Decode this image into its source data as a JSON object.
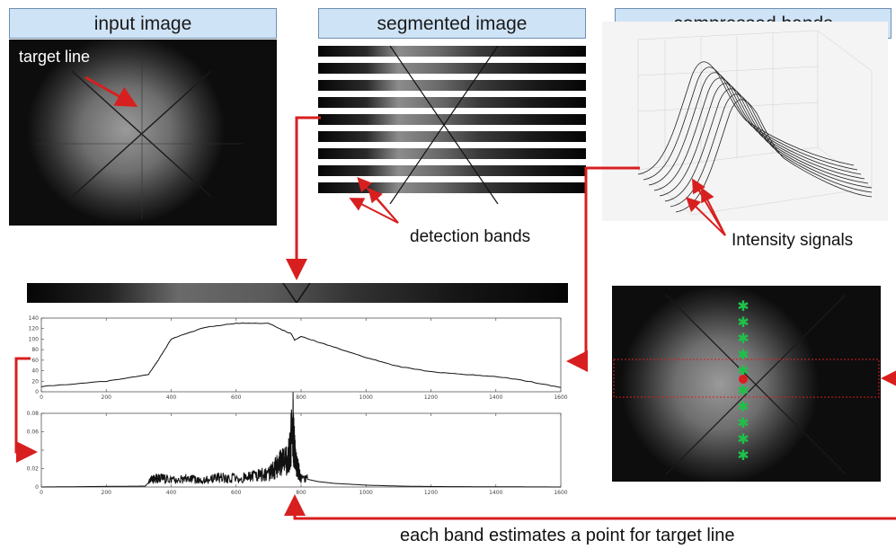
{
  "headers": {
    "input": "input image",
    "segmented": "segmented image",
    "compressed": "compressed bands"
  },
  "labels": {
    "target_line": "target line",
    "detection_bands": "detection bands",
    "intensity_signals": "Intensity signals",
    "each_band": "each band estimates a point for target line"
  },
  "colors": {
    "arrow": "#d81f1f",
    "marker": "#1fc04a",
    "header_bg": "#cfe3f6"
  },
  "chart_data": [
    {
      "type": "line",
      "title": "",
      "xlabel": "",
      "ylabel": "",
      "x_ticks": [
        0,
        200,
        400,
        600,
        800,
        1000,
        1200,
        1400,
        1600
      ],
      "y_ticks": [
        0,
        20,
        40,
        60,
        80,
        100,
        120,
        140
      ],
      "xlim": [
        0,
        1600
      ],
      "ylim": [
        0,
        140
      ],
      "x": [
        0,
        200,
        330,
        360,
        400,
        500,
        600,
        700,
        740,
        770,
        780,
        800,
        900,
        1000,
        1100,
        1200,
        1300,
        1400,
        1500,
        1600
      ],
      "y": [
        10,
        20,
        33,
        60,
        100,
        122,
        130,
        130,
        118,
        110,
        98,
        105,
        85,
        65,
        48,
        38,
        33,
        29,
        20,
        8
      ]
    },
    {
      "type": "line",
      "title": "",
      "xlabel": "",
      "ylabel": "",
      "x_ticks": [
        0,
        200,
        400,
        600,
        800,
        1000,
        1200,
        1400,
        1600
      ],
      "y_ticks": [
        0,
        0.02,
        0.04,
        0.06,
        0.08
      ],
      "y_tick_labels": [
        "0",
        "0.02",
        "",
        "0.06",
        "0.08"
      ],
      "xlim": [
        0,
        1600
      ],
      "ylim": [
        0,
        0.08
      ],
      "x": [
        0,
        320,
        340,
        360,
        400,
        450,
        500,
        550,
        600,
        650,
        700,
        720,
        740,
        760,
        775,
        780,
        790,
        800,
        850,
        900,
        1000,
        1100,
        1200,
        1600
      ],
      "y": [
        0,
        0.001,
        0.008,
        0.01,
        0.008,
        0.009,
        0.007,
        0.01,
        0.009,
        0.012,
        0.014,
        0.02,
        0.028,
        0.03,
        0.066,
        0.04,
        0.02,
        0.01,
        0.006,
        0.004,
        0.002,
        0.001,
        0.0005,
        0
      ]
    }
  ]
}
